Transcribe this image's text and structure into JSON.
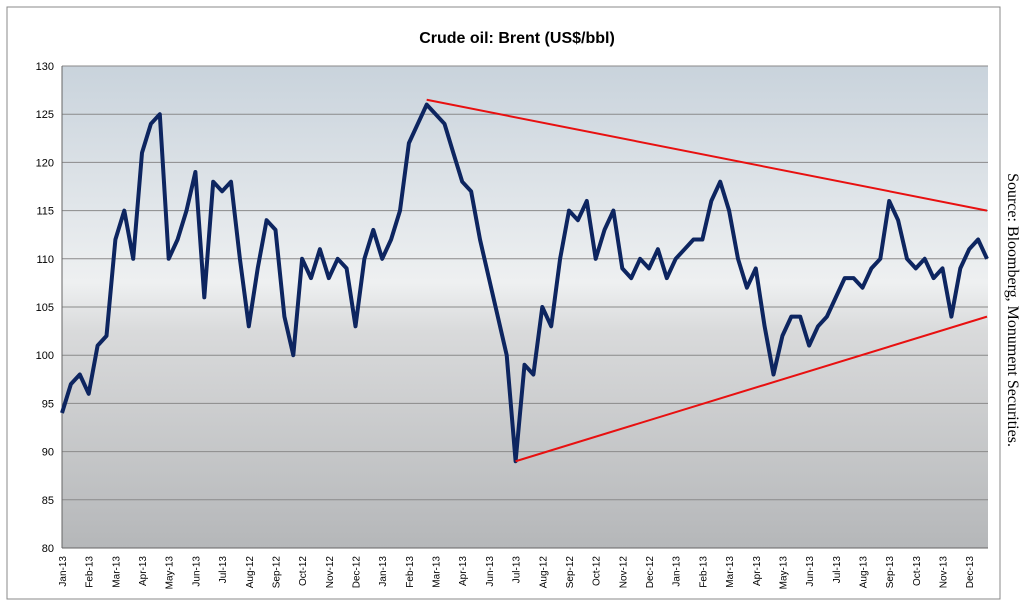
{
  "chart_data": {
    "type": "line",
    "title": "Crude oil: Brent (US$/bbl)",
    "source": "Source: Bloomberg, Monument Securities.",
    "categories": [
      "Jan-13",
      null,
      null,
      "Feb-13",
      null,
      null,
      "Mar-13",
      null,
      null,
      "Apr-13",
      null,
      null,
      "May-13",
      null,
      null,
      "Jun-13",
      null,
      null,
      "Jul-13",
      null,
      null,
      "Aug-12",
      null,
      null,
      "Sep-12",
      null,
      null,
      "Oct-12",
      null,
      null,
      "Nov-12",
      null,
      null,
      "Dec-12",
      null,
      null,
      "Jan-13",
      null,
      null,
      "Feb-13",
      null,
      null,
      "Mar-13",
      null,
      null,
      "Apr-13",
      null,
      null,
      "Jun-13",
      null,
      null,
      "Jul-13",
      null,
      null,
      "Aug-12",
      null,
      null,
      "Sep-12",
      null,
      null,
      "Oct-12",
      null,
      null,
      "Nov-12",
      null,
      null,
      "Dec-12",
      null,
      null,
      "Jan-13",
      null,
      null,
      "Feb-13",
      null,
      null,
      "Mar-13",
      null,
      null,
      "Apr-13",
      null,
      null,
      "May-13",
      null,
      null,
      "Jun-13",
      null,
      null,
      "Jul-13",
      null,
      null,
      "Aug-13",
      null,
      null,
      "Sep-13",
      null,
      null,
      "Oct-13",
      null,
      null,
      "Nov-13",
      null,
      null,
      "Dec-13",
      null,
      null
    ],
    "values": [
      94,
      97,
      98,
      96,
      101,
      102,
      112,
      115,
      110,
      121,
      124,
      125,
      110,
      112,
      115,
      119,
      106,
      118,
      117,
      118,
      110,
      103,
      109,
      114,
      113,
      104,
      100,
      110,
      108,
      111,
      108,
      110,
      109,
      103,
      110,
      113,
      110,
      112,
      115,
      122,
      124,
      126,
      125,
      124,
      121,
      118,
      117,
      112,
      108,
      104,
      100,
      89,
      99,
      98,
      105,
      103,
      110,
      115,
      114,
      116,
      110,
      113,
      115,
      109,
      108,
      110,
      109,
      111,
      108,
      110,
      111,
      112,
      112,
      116,
      118,
      115,
      110,
      107,
      109,
      103,
      98,
      102,
      104,
      104,
      101,
      103,
      104,
      106,
      108,
      108,
      107,
      109,
      110,
      116,
      114,
      110,
      109,
      110,
      108,
      109,
      104,
      109,
      111,
      112,
      110
    ],
    "color": "#0d2560",
    "trend_lines": [
      {
        "color": "#e81010",
        "x": [
          41,
          104
        ],
        "values": [
          126.5,
          115
        ]
      },
      {
        "color": "#e81010",
        "x": [
          51,
          104
        ],
        "values": [
          89,
          104
        ]
      }
    ],
    "ylim": [
      80,
      130
    ],
    "yticks": [
      80,
      85,
      90,
      95,
      100,
      105,
      110,
      115,
      120,
      125,
      130
    ],
    "grid": true
  }
}
